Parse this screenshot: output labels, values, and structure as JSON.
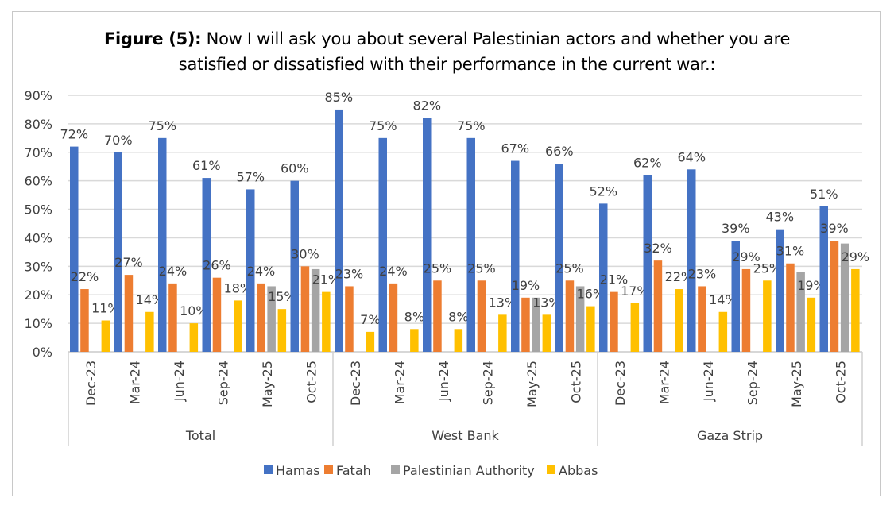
{
  "title_prefix": "Figure (5):",
  "title_line1": " Now I will ask you about several Palestinian actors and whether you are",
  "title_line2": "satisfied or dissatisfied with their performance in the current war.:",
  "colors": {
    "Hamas": "#4472c4",
    "Fatah": "#ed7d31",
    "Palestinian Authority": "#a5a5a5",
    "Abbas": "#ffc000"
  },
  "chart_data": {
    "type": "bar",
    "grid": true,
    "legend_position": "bottom",
    "ylim": [
      0,
      90
    ],
    "yticks": [
      "0%",
      "10%",
      "20%",
      "30%",
      "40%",
      "50%",
      "60%",
      "70%",
      "80%",
      "90%"
    ],
    "groups": [
      "Total",
      "West Bank",
      "Gaza Strip"
    ],
    "categories": [
      "Dec-23",
      "Mar-24",
      "Jun-24",
      "Sep-24",
      "May-25",
      "Oct-25"
    ],
    "series": [
      {
        "name": "Hamas",
        "values": [
          [
            72,
            70,
            75,
            61,
            57,
            60
          ],
          [
            85,
            75,
            82,
            75,
            67,
            66
          ],
          [
            52,
            62,
            64,
            39,
            43,
            51
          ]
        ],
        "labels": true
      },
      {
        "name": "Fatah",
        "values": [
          [
            22,
            27,
            24,
            26,
            24,
            30
          ],
          [
            23,
            24,
            25,
            25,
            19,
            25
          ],
          [
            21,
            32,
            23,
            29,
            31,
            39
          ]
        ],
        "labels": true
      },
      {
        "name": "Palestinian Authority",
        "values": [
          [
            null,
            null,
            null,
            null,
            23,
            29
          ],
          [
            null,
            null,
            null,
            null,
            19,
            23
          ],
          [
            null,
            null,
            null,
            null,
            28,
            38
          ]
        ],
        "labels": false
      },
      {
        "name": "Abbas",
        "values": [
          [
            11,
            14,
            10,
            18,
            15,
            21
          ],
          [
            7,
            8,
            8,
            13,
            13,
            16
          ],
          [
            17,
            22,
            14,
            25,
            19,
            29
          ]
        ],
        "labels": true
      }
    ]
  }
}
